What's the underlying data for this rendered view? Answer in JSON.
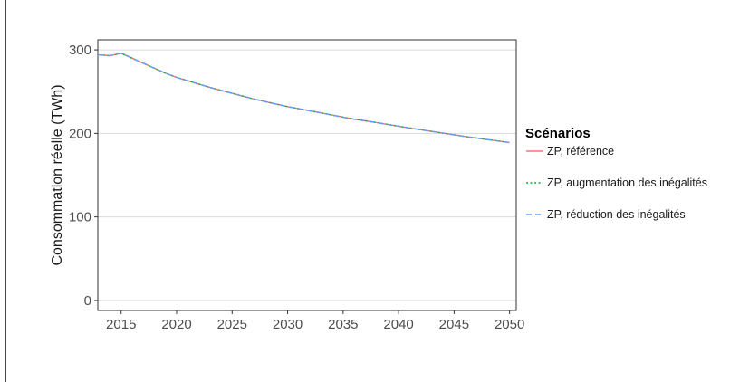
{
  "chart_data": {
    "type": "line",
    "title": "",
    "xlabel": "",
    "ylabel": "Consommation réelle (TWh)",
    "xlim": [
      2012.9,
      2050.6
    ],
    "ylim": [
      -12,
      312
    ],
    "x_ticks": [
      2015,
      2020,
      2025,
      2030,
      2035,
      2040,
      2045,
      2050
    ],
    "y_ticks": [
      0,
      100,
      200,
      300
    ],
    "grid": true,
    "legend": {
      "title": "Scénarios",
      "position": "right"
    },
    "x": [
      2013,
      2014,
      2015,
      2016,
      2017,
      2018,
      2019,
      2020,
      2021,
      2022,
      2023,
      2024,
      2025,
      2026,
      2027,
      2028,
      2029,
      2030,
      2031,
      2032,
      2033,
      2034,
      2035,
      2036,
      2037,
      2038,
      2039,
      2040,
      2041,
      2042,
      2043,
      2044,
      2045,
      2046,
      2047,
      2048,
      2049,
      2050
    ],
    "series": [
      {
        "name": "ZP, référence",
        "color": "#F8766D",
        "dash": "solid",
        "values": [
          294,
          293,
          296,
          290,
          284,
          278,
          272,
          267,
          263,
          259,
          255,
          251.5,
          248,
          244.5,
          241,
          238,
          235,
          232,
          229.5,
          227,
          224.5,
          222,
          219.5,
          217,
          215,
          213,
          210.8,
          208.6,
          206.5,
          204.4,
          202.3,
          200.3,
          198.3,
          196.3,
          194.5,
          192.6,
          190.8,
          189
        ]
      },
      {
        "name": "ZP, augmentation des inégalités",
        "color": "#00BA38",
        "dash": "dotted",
        "values": [
          294,
          293,
          296,
          290,
          284,
          278,
          272,
          267,
          263,
          259,
          255,
          251.5,
          248,
          244.5,
          241,
          238,
          235,
          232,
          229.5,
          227,
          224.5,
          222,
          219.5,
          217,
          215,
          213,
          210.8,
          208.6,
          206.5,
          204.4,
          202.3,
          200.3,
          198.3,
          196.3,
          194.5,
          192.6,
          190.8,
          189
        ]
      },
      {
        "name": "ZP, réduction des inégalités",
        "color": "#619CFF",
        "dash": "dashed",
        "values": [
          294,
          293,
          296,
          290,
          284,
          278,
          272,
          267,
          263,
          259,
          255,
          251.5,
          248,
          244.5,
          241,
          238,
          235,
          232,
          229.5,
          227,
          224.5,
          222,
          219.5,
          217,
          215,
          213,
          210.8,
          208.6,
          206.5,
          204.4,
          202.3,
          200.3,
          198.3,
          196.3,
          194.5,
          192.6,
          190.8,
          189
        ]
      }
    ]
  }
}
